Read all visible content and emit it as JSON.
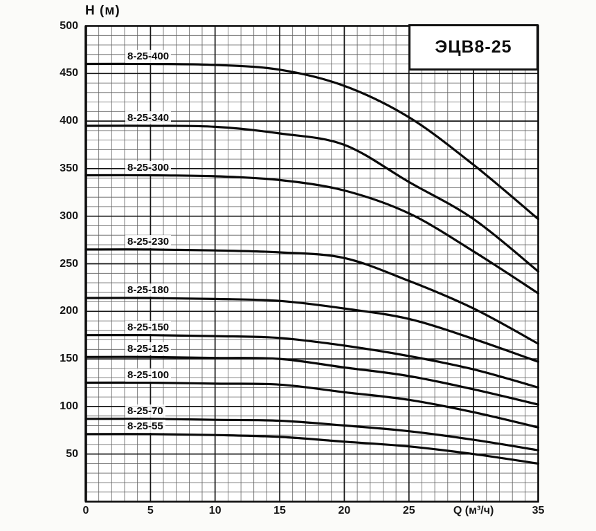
{
  "chart": {
    "title": "ЭЦВ8-25",
    "y_axis_label": "Н (м)",
    "x_axis_label": "Q (м³/ч)"
  },
  "chart_data": {
    "type": "line",
    "title": "ЭЦВ8-25",
    "xlabel": "Q (м³/ч)",
    "ylabel": "Н (м)",
    "xlim": [
      0,
      35
    ],
    "ylim": [
      0,
      500
    ],
    "grid": {
      "x_minor_step": 1,
      "x_major_step": 5,
      "y_minor_step": 10,
      "y_major_step": 50,
      "visible": true
    },
    "legend_position": "none",
    "y_tick_labels": [
      500,
      450,
      400,
      350,
      300,
      250,
      200,
      150,
      100,
      50
    ],
    "x_ticks": [
      {
        "q": 0,
        "label": "0"
      },
      {
        "q": 5,
        "label": "5"
      },
      {
        "q": 10,
        "label": "10"
      },
      {
        "q": 15,
        "label": "15"
      },
      {
        "q": 20,
        "label": "20"
      },
      {
        "q": 25,
        "label": "25"
      },
      {
        "q": 30,
        "label": "Q (м³/ч)"
      },
      {
        "q": 35,
        "label": "35"
      }
    ],
    "x": [
      0,
      5,
      10,
      15,
      20,
      25,
      30,
      35
    ],
    "series": [
      {
        "name": "8-25-400",
        "values": [
          460,
          460,
          459,
          454,
          437,
          404,
          354,
          297
        ]
      },
      {
        "name": "8-25-340",
        "values": [
          395,
          395,
          394,
          387,
          375,
          336,
          297,
          242
        ]
      },
      {
        "name": "8-25-300",
        "values": [
          343,
          343,
          342,
          338,
          327,
          303,
          263,
          219
        ]
      },
      {
        "name": "8-25-230",
        "values": [
          265,
          265,
          264,
          262,
          256,
          232,
          203,
          166
        ]
      },
      {
        "name": "8-25-180",
        "values": [
          214,
          214,
          213,
          211,
          203,
          192,
          171,
          147
        ]
      },
      {
        "name": "8-25-150",
        "values": [
          175,
          175,
          174,
          172,
          164,
          153,
          139,
          120
        ]
      },
      {
        "name": "8-25-125",
        "values": [
          152,
          152,
          151,
          150,
          141,
          132,
          118,
          102
        ]
      },
      {
        "name": "8-25-100",
        "values": [
          125,
          125,
          124,
          123,
          115,
          107,
          94,
          78
        ]
      },
      {
        "name": "8-25-70",
        "values": [
          87,
          87,
          86,
          85,
          80,
          74,
          65,
          54
        ]
      },
      {
        "name": "8-25-55",
        "values": [
          71,
          71,
          70,
          68,
          63,
          58,
          50,
          40
        ]
      }
    ],
    "annotations": "curve name printed above each curve near its flat left section"
  },
  "colors": {
    "page_bg": "#fbfbf9",
    "plot_bg": "#ffffff",
    "curve": "#0a0a0a",
    "grid_minor": "#5f5f5f",
    "grid_major": "#161616",
    "frame": "#0d0d0d",
    "text": "#111111"
  }
}
